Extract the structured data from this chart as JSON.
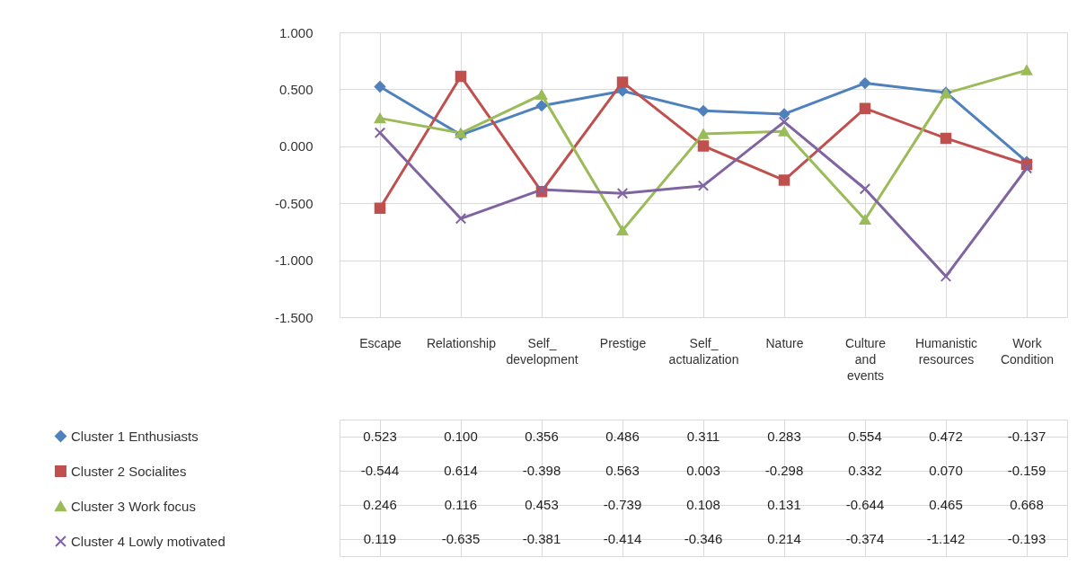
{
  "chart_data": {
    "type": "line",
    "categories": [
      "Escape",
      "Relationship",
      "Self_development",
      "Prestige",
      "Self_actualization",
      "Nature",
      "Culture and events",
      "Humanistic resources",
      "Work Condition"
    ],
    "series": [
      {
        "name": "Cluster 1 Enthusiasts",
        "color": "#4f81bd",
        "marker": "diamond",
        "values": [
          0.523,
          0.1,
          0.356,
          0.486,
          0.311,
          0.283,
          0.554,
          0.472,
          -0.137
        ],
        "value_labels": [
          "0.523",
          "0.100",
          "0.356",
          "0.486",
          "0.311",
          "0.283",
          "0.554",
          "0.472",
          "-0.137"
        ]
      },
      {
        "name": "Cluster 2 Socialites",
        "color": "#c0504d",
        "marker": "square",
        "values": [
          -0.544,
          0.614,
          -0.398,
          0.563,
          0.003,
          -0.298,
          0.332,
          0.07,
          -0.159
        ],
        "value_labels": [
          "-0.544",
          "0.614",
          "-0.398",
          "0.563",
          "0.003",
          "-0.298",
          "0.332",
          "0.070",
          "-0.159"
        ]
      },
      {
        "name": "Cluster 3 Work focus",
        "color": "#9bbb59",
        "marker": "triangle",
        "values": [
          0.246,
          0.116,
          0.453,
          -0.739,
          0.108,
          0.131,
          -0.644,
          0.465,
          0.668
        ],
        "value_labels": [
          "0.246",
          "0.116",
          "0.453",
          "-0.739",
          "0.108",
          "0.131",
          "-0.644",
          "0.465",
          "0.668"
        ]
      },
      {
        "name": "Cluster 4 Lowly motivated",
        "color": "#8064a2",
        "marker": "cross",
        "values": [
          0.119,
          -0.635,
          -0.381,
          -0.414,
          -0.346,
          0.214,
          -0.374,
          -1.142,
          -0.193
        ],
        "value_labels": [
          "0.119",
          "-0.635",
          "-0.381",
          "-0.414",
          "-0.346",
          "0.214",
          "-0.374",
          "-1.142",
          "-0.193"
        ]
      }
    ],
    "ylim": [
      -1.5,
      1.0
    ],
    "yticks": [
      {
        "value": 1.0,
        "label": "1.000"
      },
      {
        "value": 0.5,
        "label": "0.500"
      },
      {
        "value": 0,
        "label": "0.000"
      },
      {
        "value": -0.5,
        "label": "-0.500"
      },
      {
        "value": -1.0,
        "label": "-1.000"
      },
      {
        "value": -1.5,
        "label": "-1.500"
      }
    ],
    "grid": true,
    "legend": "bottom left",
    "line_style": "solid"
  }
}
